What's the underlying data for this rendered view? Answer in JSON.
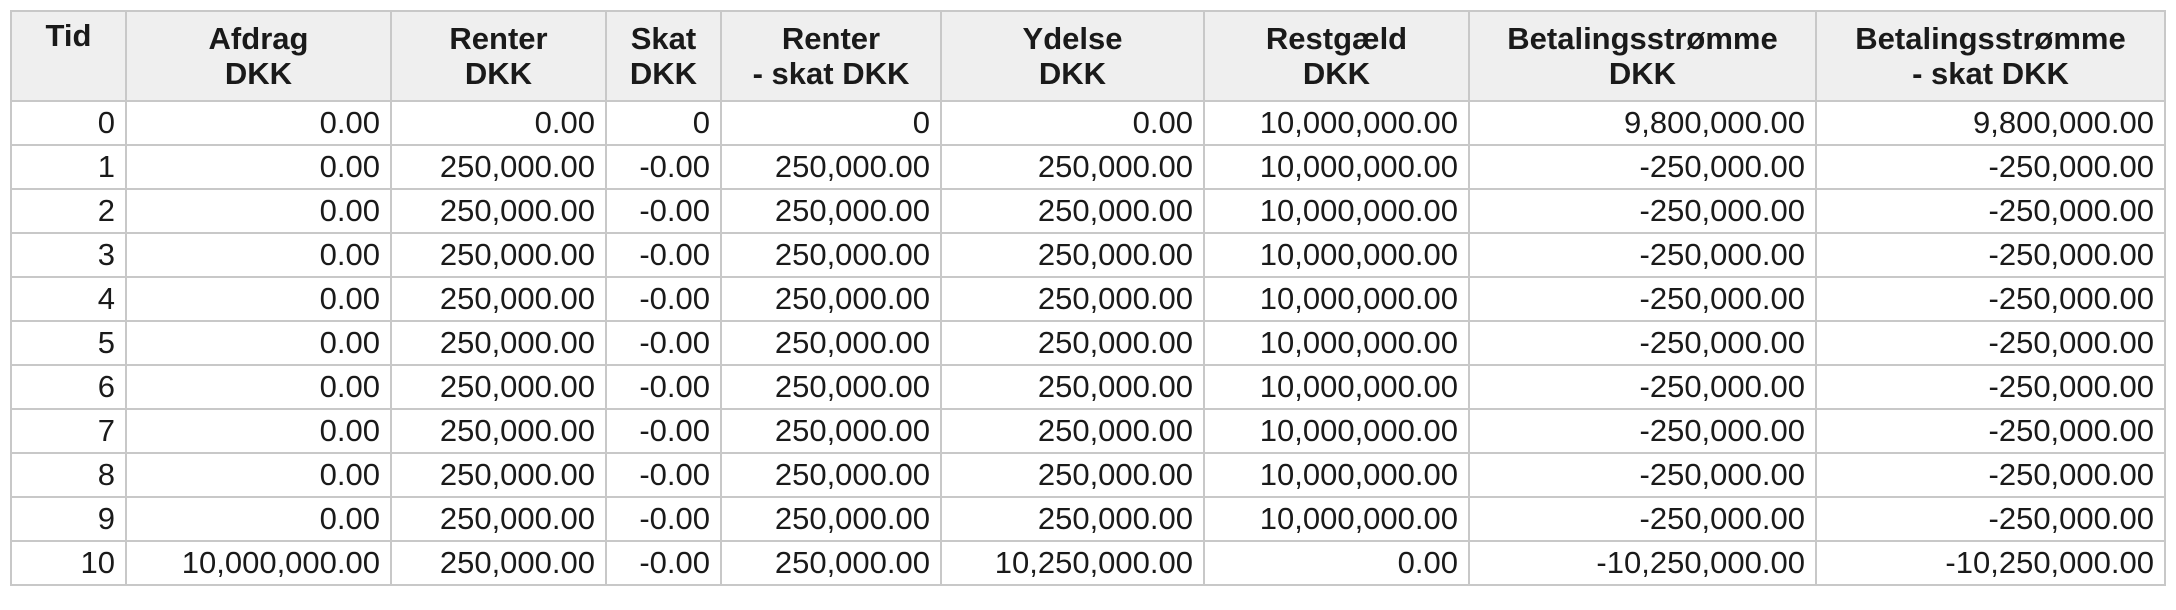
{
  "headers": [
    {
      "line1": "Tid",
      "line2": ""
    },
    {
      "line1": "Afdrag",
      "line2": "DKK"
    },
    {
      "line1": "Renter",
      "line2": "DKK"
    },
    {
      "line1": "Skat",
      "line2": "DKK"
    },
    {
      "line1": "Renter",
      "line2": "- skat DKK"
    },
    {
      "line1": "Ydelse",
      "line2": "DKK"
    },
    {
      "line1": "Restgæld",
      "line2": "DKK"
    },
    {
      "line1": "Betalingsstrømme",
      "line2": "DKK"
    },
    {
      "line1": "Betalingsstrømme",
      "line2": "- skat DKK"
    }
  ],
  "rows": [
    [
      "0",
      "0.00",
      "0.00",
      "0",
      "0",
      "0.00",
      "10,000,000.00",
      "9,800,000.00",
      "9,800,000.00"
    ],
    [
      "1",
      "0.00",
      "250,000.00",
      "-0.00",
      "250,000.00",
      "250,000.00",
      "10,000,000.00",
      "-250,000.00",
      "-250,000.00"
    ],
    [
      "2",
      "0.00",
      "250,000.00",
      "-0.00",
      "250,000.00",
      "250,000.00",
      "10,000,000.00",
      "-250,000.00",
      "-250,000.00"
    ],
    [
      "3",
      "0.00",
      "250,000.00",
      "-0.00",
      "250,000.00",
      "250,000.00",
      "10,000,000.00",
      "-250,000.00",
      "-250,000.00"
    ],
    [
      "4",
      "0.00",
      "250,000.00",
      "-0.00",
      "250,000.00",
      "250,000.00",
      "10,000,000.00",
      "-250,000.00",
      "-250,000.00"
    ],
    [
      "5",
      "0.00",
      "250,000.00",
      "-0.00",
      "250,000.00",
      "250,000.00",
      "10,000,000.00",
      "-250,000.00",
      "-250,000.00"
    ],
    [
      "6",
      "0.00",
      "250,000.00",
      "-0.00",
      "250,000.00",
      "250,000.00",
      "10,000,000.00",
      "-250,000.00",
      "-250,000.00"
    ],
    [
      "7",
      "0.00",
      "250,000.00",
      "-0.00",
      "250,000.00",
      "250,000.00",
      "10,000,000.00",
      "-250,000.00",
      "-250,000.00"
    ],
    [
      "8",
      "0.00",
      "250,000.00",
      "-0.00",
      "250,000.00",
      "250,000.00",
      "10,000,000.00",
      "-250,000.00",
      "-250,000.00"
    ],
    [
      "9",
      "0.00",
      "250,000.00",
      "-0.00",
      "250,000.00",
      "250,000.00",
      "10,000,000.00",
      "-250,000.00",
      "-250,000.00"
    ],
    [
      "10",
      "10,000,000.00",
      "250,000.00",
      "-0.00",
      "250,000.00",
      "10,250,000.00",
      "0.00",
      "-10,250,000.00",
      "-10,250,000.00"
    ]
  ]
}
